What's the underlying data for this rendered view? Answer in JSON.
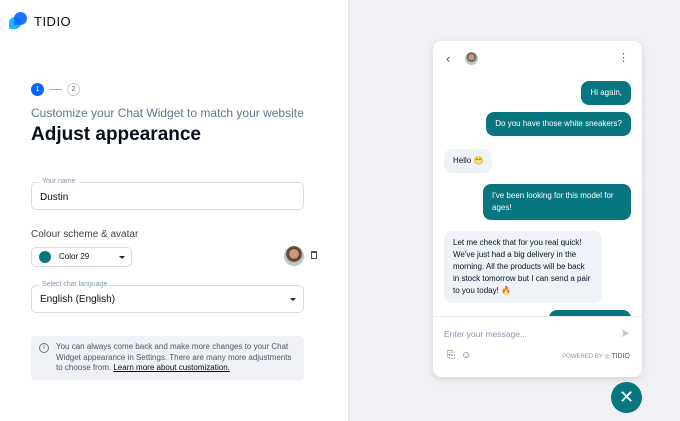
{
  "brand": {
    "name": "TIDIO"
  },
  "steps": [
    "1",
    "2"
  ],
  "header": {
    "subtitle": "Customize your Chat Widget to match your website",
    "title": "Adjust appearance"
  },
  "name_field": {
    "label": "Your name",
    "value": "Dustin"
  },
  "colour": {
    "section_label": "Colour scheme & avatar",
    "selected": "Color 29",
    "swatch": "#08767f"
  },
  "language": {
    "label": "Select chat language",
    "value": "English (English)"
  },
  "info": {
    "text": "You can always come back and make more changes to your Chat Widget appearance in Settings. There are many more adjustments to choose from. ",
    "link": "Learn more about customization."
  },
  "chat": {
    "messages": [
      {
        "from": "user",
        "text": "Hi again,"
      },
      {
        "from": "user",
        "text": "Do you have those white sneakers?"
      },
      {
        "from": "agent",
        "text": "Hello 😁"
      },
      {
        "from": "user",
        "text": "I've been looking for this model for ages!"
      },
      {
        "from": "agent",
        "text": "Let me check that for you real quick! We've just had a big delivery in the morning. All the products will be back in stock tomorrow but I can send a pair to you today! 🔥"
      }
    ],
    "input_placeholder": "Enter your message...",
    "powered_by": "POWERED BY",
    "powered_brand": "TIDIO"
  },
  "colors": {
    "accent": "#08767f",
    "primary": "#0566ff"
  }
}
